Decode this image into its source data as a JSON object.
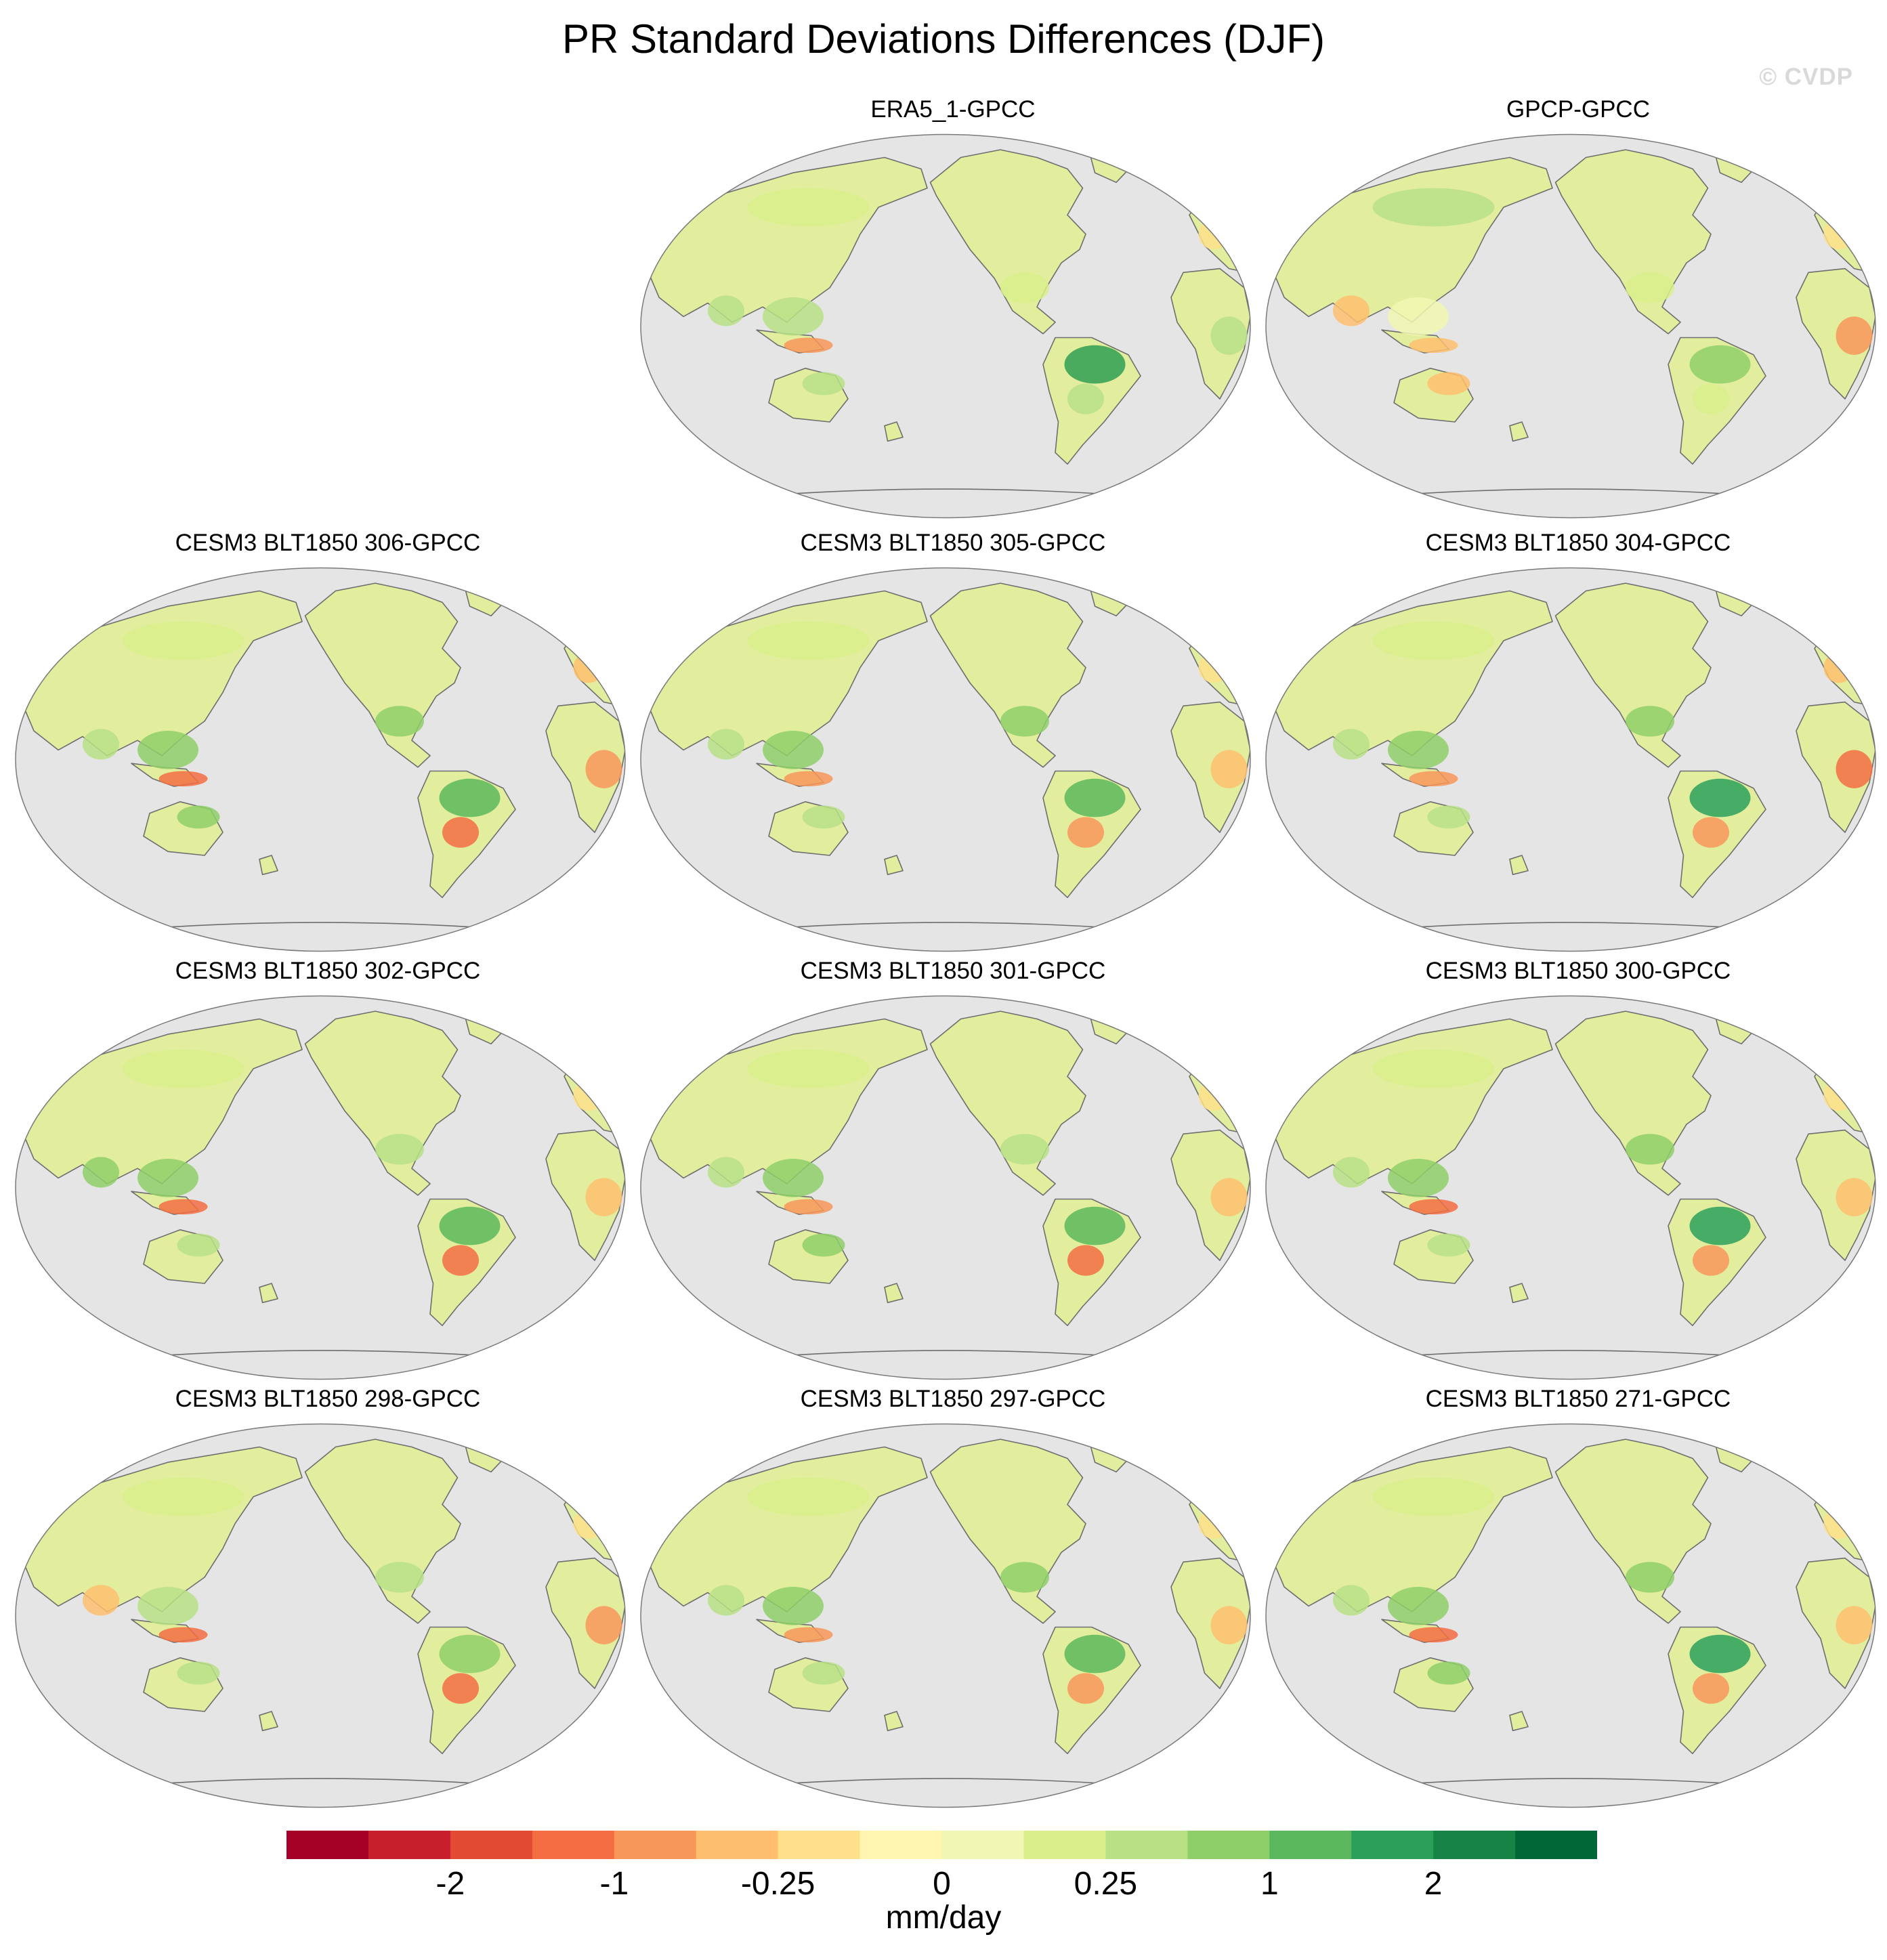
{
  "figure": {
    "title": "PR Standard Deviations Differences (DJF)",
    "watermark": "© CVDP"
  },
  "panels": [
    {
      "title": "ERA5_1-GPCC"
    },
    {
      "title": "GPCP-GPCC"
    },
    {
      "title": "CESM3 BLT1850 306-GPCC"
    },
    {
      "title": "CESM3 BLT1850 305-GPCC"
    },
    {
      "title": "CESM3 BLT1850 304-GPCC"
    },
    {
      "title": "CESM3 BLT1850 302-GPCC"
    },
    {
      "title": "CESM3 BLT1850 301-GPCC"
    },
    {
      "title": "CESM3 BLT1850 300-GPCC"
    },
    {
      "title": "CESM3 BLT1850 298-GPCC"
    },
    {
      "title": "CESM3 BLT1850 297-GPCC"
    },
    {
      "title": "CESM3 BLT1850 271-GPCC"
    }
  ],
  "colorbar": {
    "units": "mm/day",
    "tick_labels": [
      "-2",
      "-1",
      "-0.25",
      "0",
      "0.25",
      "1",
      "2"
    ],
    "colors": [
      "#a50026",
      "#c8202a",
      "#e34a33",
      "#f46d43",
      "#f8975a",
      "#fdbf6f",
      "#fee08b",
      "#fff5b0",
      "#f1f7b2",
      "#d9ef8b",
      "#b8e186",
      "#8fcf69",
      "#5cb85c",
      "#2ca05a",
      "#178445",
      "#006837"
    ]
  },
  "map_style": {
    "ocean": "#e5e5e5",
    "land_base": "#e2ee9e",
    "coast": "#6e6e6e"
  }
}
